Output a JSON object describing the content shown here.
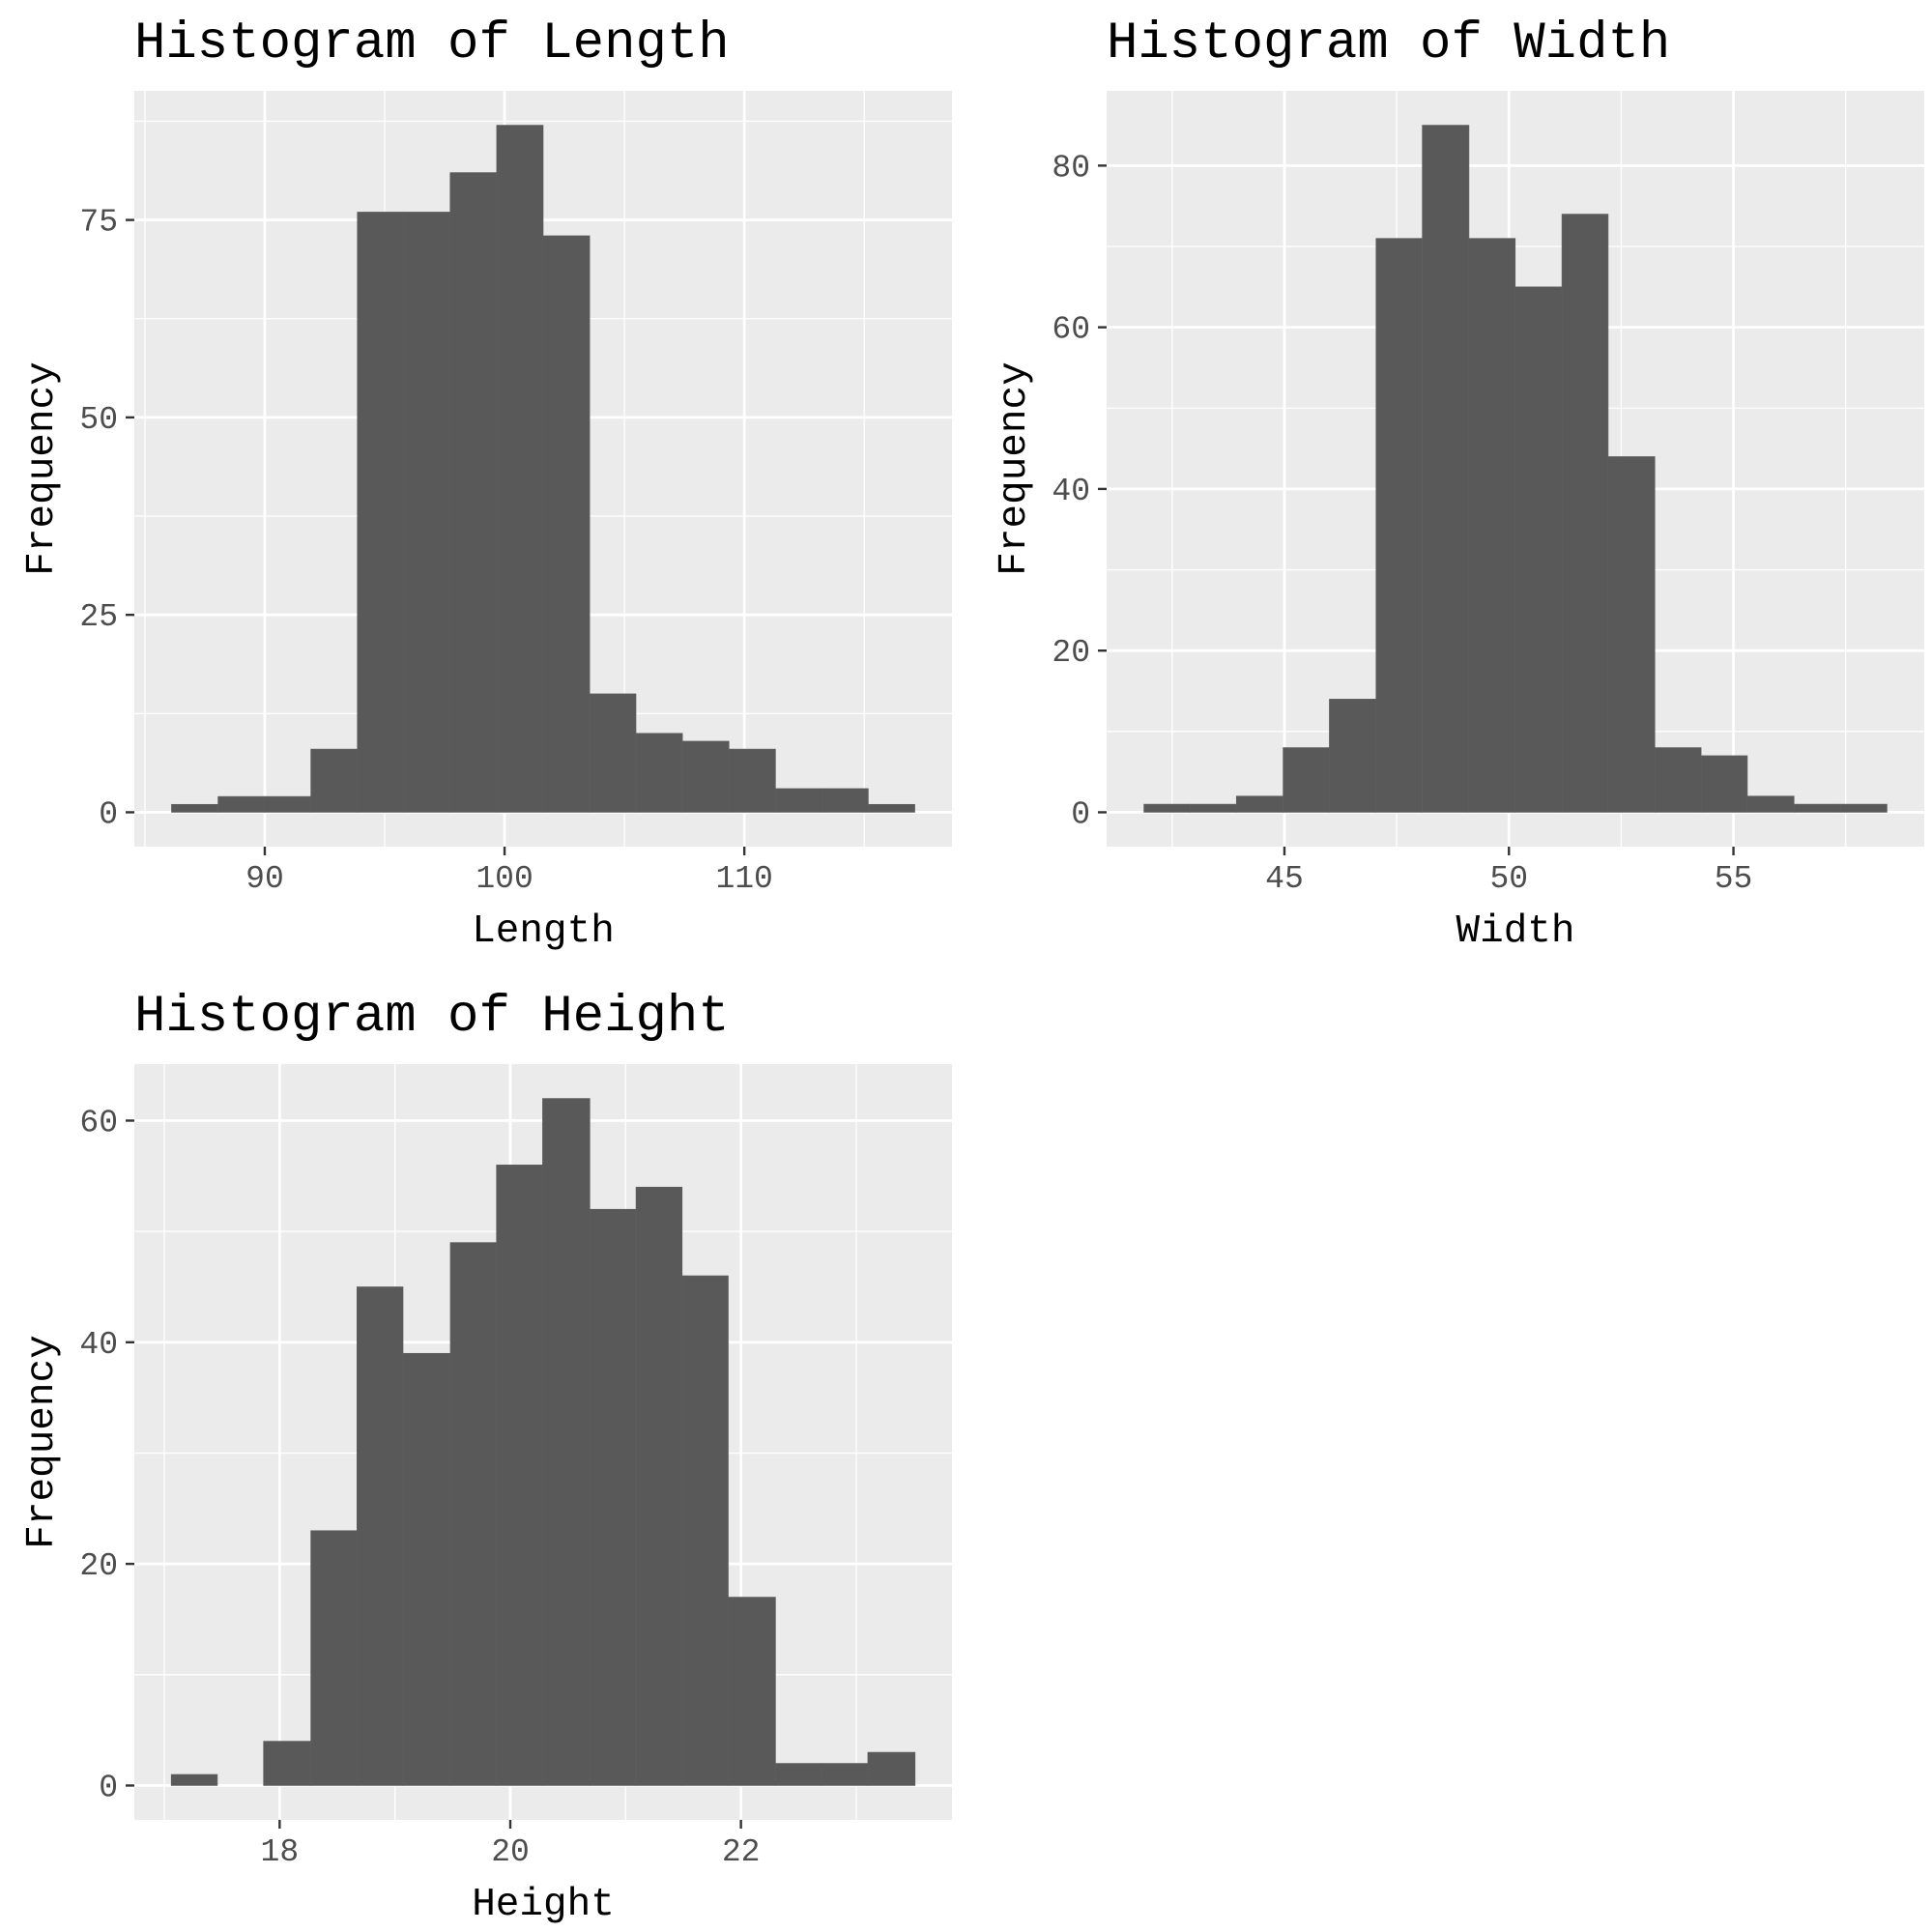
{
  "chart_data": [
    {
      "type": "bar",
      "title": "Histogram of Length",
      "xlabel": "Length",
      "ylabel": "Frequency",
      "bin_width": 1.9375,
      "bins": [
        {
          "x0": 86.11,
          "x1": 88.05,
          "count": 1
        },
        {
          "x0": 88.05,
          "x1": 89.99,
          "count": 2
        },
        {
          "x0": 89.99,
          "x1": 91.92,
          "count": 2
        },
        {
          "x0": 91.92,
          "x1": 93.86,
          "count": 8
        },
        {
          "x0": 93.86,
          "x1": 95.8,
          "count": 76
        },
        {
          "x0": 95.8,
          "x1": 97.73,
          "count": 76
        },
        {
          "x0": 97.73,
          "x1": 99.67,
          "count": 81
        },
        {
          "x0": 99.67,
          "x1": 101.61,
          "count": 87
        },
        {
          "x0": 101.61,
          "x1": 103.55,
          "count": 73
        },
        {
          "x0": 103.55,
          "x1": 105.48,
          "count": 15
        },
        {
          "x0": 105.48,
          "x1": 107.42,
          "count": 10
        },
        {
          "x0": 107.42,
          "x1": 109.36,
          "count": 9
        },
        {
          "x0": 109.36,
          "x1": 111.3,
          "count": 8
        },
        {
          "x0": 111.3,
          "x1": 113.23,
          "count": 3
        },
        {
          "x0": 113.23,
          "x1": 115.17,
          "count": 3
        },
        {
          "x0": 115.17,
          "x1": 117.11,
          "count": 1
        }
      ],
      "xlim": [
        84.56,
        118.66
      ],
      "ylim": [
        -4.35,
        91.35
      ],
      "xticks": [
        90,
        100,
        110
      ],
      "xticklabels": [
        "90",
        "100",
        "110"
      ],
      "yticks": [
        0,
        25,
        50,
        75
      ],
      "yticklabels": [
        "0",
        "25",
        "50",
        "75"
      ],
      "grid": true,
      "fill_color": "#595959",
      "panel_color": "#ebebeb"
    },
    {
      "type": "bar",
      "title": "Histogram of Width",
      "xlabel": "Width",
      "ylabel": "Frequency",
      "bin_width": 1.03,
      "bins": [
        {
          "x0": 41.87,
          "x1": 42.9,
          "count": 1
        },
        {
          "x0": 42.9,
          "x1": 43.93,
          "count": 1
        },
        {
          "x0": 43.93,
          "x1": 44.97,
          "count": 2
        },
        {
          "x0": 44.97,
          "x1": 46.0,
          "count": 8
        },
        {
          "x0": 46.0,
          "x1": 47.04,
          "count": 14
        },
        {
          "x0": 47.04,
          "x1": 48.07,
          "count": 71
        },
        {
          "x0": 48.07,
          "x1": 49.11,
          "count": 85
        },
        {
          "x0": 49.11,
          "x1": 50.14,
          "count": 71
        },
        {
          "x0": 50.14,
          "x1": 51.18,
          "count": 65
        },
        {
          "x0": 51.18,
          "x1": 52.21,
          "count": 74
        },
        {
          "x0": 52.21,
          "x1": 53.25,
          "count": 44
        },
        {
          "x0": 53.25,
          "x1": 54.28,
          "count": 8
        },
        {
          "x0": 54.28,
          "x1": 55.31,
          "count": 7
        },
        {
          "x0": 55.31,
          "x1": 56.35,
          "count": 2
        },
        {
          "x0": 56.35,
          "x1": 57.38,
          "count": 1
        },
        {
          "x0": 57.38,
          "x1": 58.42,
          "count": 1
        }
      ],
      "xlim": [
        41.04,
        59.25
      ],
      "ylim": [
        -4.25,
        89.25
      ],
      "xticks": [
        45,
        50,
        55
      ],
      "xticklabels": [
        "45",
        "50",
        "55"
      ],
      "yticks": [
        0,
        20,
        40,
        60,
        80
      ],
      "yticklabels": [
        "0",
        "20",
        "40",
        "60",
        "80"
      ],
      "grid": true,
      "fill_color": "#595959",
      "panel_color": "#ebebeb"
    },
    {
      "type": "bar",
      "title": "Histogram of Height",
      "xlabel": "Height",
      "ylabel": "Frequency",
      "bin_width": 0.4025,
      "bins": [
        {
          "x0": 17.06,
          "x1": 17.46,
          "count": 1
        },
        {
          "x0": 17.46,
          "x1": 17.86,
          "count": 0
        },
        {
          "x0": 17.86,
          "x1": 18.27,
          "count": 4
        },
        {
          "x0": 18.27,
          "x1": 18.67,
          "count": 23
        },
        {
          "x0": 18.67,
          "x1": 19.07,
          "count": 45
        },
        {
          "x0": 19.07,
          "x1": 19.48,
          "count": 39
        },
        {
          "x0": 19.48,
          "x1": 19.88,
          "count": 49
        },
        {
          "x0": 19.88,
          "x1": 20.28,
          "count": 56
        },
        {
          "x0": 20.28,
          "x1": 20.69,
          "count": 62
        },
        {
          "x0": 20.69,
          "x1": 21.09,
          "count": 52
        },
        {
          "x0": 21.09,
          "x1": 21.49,
          "count": 54
        },
        {
          "x0": 21.49,
          "x1": 21.89,
          "count": 46
        },
        {
          "x0": 21.89,
          "x1": 22.3,
          "count": 17
        },
        {
          "x0": 22.3,
          "x1": 22.7,
          "count": 2
        },
        {
          "x0": 22.7,
          "x1": 23.1,
          "count": 2
        },
        {
          "x0": 23.1,
          "x1": 23.51,
          "count": 3
        }
      ],
      "xlim": [
        16.74,
        23.83
      ],
      "ylim": [
        -3.1,
        65.1
      ],
      "xticks": [
        18,
        20,
        22
      ],
      "xticklabels": [
        "18",
        "20",
        "22"
      ],
      "yticks": [
        0,
        20,
        40,
        60
      ],
      "yticklabels": [
        "0",
        "20",
        "40",
        "60"
      ],
      "grid": true,
      "fill_color": "#595959",
      "panel_color": "#ebebeb"
    }
  ]
}
